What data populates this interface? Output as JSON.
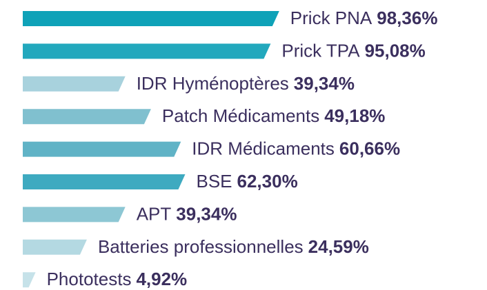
{
  "chart_data": {
    "type": "bar",
    "orientation": "horizontal",
    "categories": [
      "Prick PNA",
      "Prick TPA",
      "IDR Hyménoptères",
      "Patch Médicaments",
      "IDR Médicaments",
      "BSE",
      "APT",
      "Batteries professionnelles",
      "Phototests"
    ],
    "values": [
      98.36,
      95.08,
      39.34,
      49.18,
      60.66,
      62.3,
      39.34,
      24.59,
      4.92
    ],
    "value_labels": [
      "98,36%",
      "95,08%",
      "39,34%",
      "49,18%",
      "60,66%",
      "62,30%",
      "39,34%",
      "24,59%",
      "4,92%"
    ],
    "colors": [
      "#0fa2b8",
      "#22a8bd",
      "#a8d2dd",
      "#80c0cf",
      "#60b3c6",
      "#3eaac0",
      "#8dc7d4",
      "#b4d9e2",
      "#c6e2e9"
    ]
  }
}
